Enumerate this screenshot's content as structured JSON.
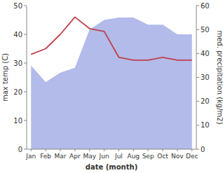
{
  "chart_data": {
    "type": "line",
    "categories": [
      "Jan",
      "Feb",
      "Mar",
      "Apr",
      "May",
      "Jun",
      "Jul",
      "Aug",
      "Sep",
      "Oct",
      "Nov",
      "Dec"
    ],
    "xlabel": "date (month)",
    "ylabel": "max temp (C)",
    "y2label": "med. precipitation (kg/m2)",
    "ylim": [
      0,
      50
    ],
    "yticks": [
      0,
      10,
      20,
      30,
      40,
      50
    ],
    "y2lim": [
      0,
      60
    ],
    "y2ticks": [
      0,
      10,
      20,
      30,
      40,
      50,
      60
    ],
    "grid": false,
    "series": [
      {
        "type": "area",
        "color": "#aab4e8",
        "axis": "y2",
        "values": [
          35,
          28,
          32,
          34,
          50,
          54,
          55,
          55,
          52,
          52,
          48,
          48
        ]
      },
      {
        "type": "line",
        "color": "#c0404a",
        "values": [
          33,
          35,
          40,
          46,
          42,
          41,
          32,
          31,
          31,
          32,
          31,
          31
        ]
      }
    ]
  }
}
